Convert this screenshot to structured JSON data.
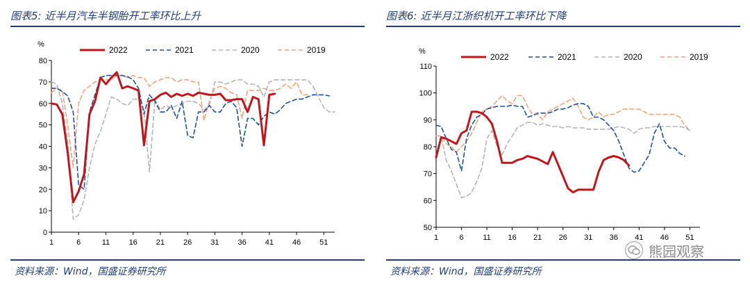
{
  "figures": [
    {
      "title": "图表5:  近半月汽车半钢胎开工率环比上升",
      "source": "资料来源：Wind，国盛证券研究所",
      "chart_data": {
        "type": "line",
        "unit_label": "%",
        "ylim": [
          0,
          80
        ],
        "yticks": [
          0,
          10,
          20,
          30,
          40,
          50,
          60,
          70,
          80
        ],
        "xlim": [
          1,
          53
        ],
        "xticks": [
          1,
          6,
          11,
          16,
          21,
          26,
          31,
          36,
          41,
          46,
          51
        ],
        "legend_position": "top",
        "series": [
          {
            "name": "2022",
            "color": "#c0161b",
            "dash": "solid",
            "width": 3,
            "x": [
              1,
              2,
              3,
              4,
              5,
              6,
              7,
              8,
              9,
              10,
              11,
              12,
              13,
              14,
              15,
              16,
              17,
              18,
              19,
              20,
              21,
              22,
              23,
              24,
              25,
              26,
              27,
              28,
              29,
              30,
              31,
              32,
              33,
              34,
              35,
              36,
              37,
              38,
              39,
              40,
              41,
              42
            ],
            "y": [
              60,
              59.5,
              55,
              37,
              14,
              19,
              27,
              55,
              61,
              72,
              69,
              72,
              74.5,
              67,
              68,
              67,
              66,
              40.5,
              61,
              62,
              64,
              65,
              63,
              64.5,
              63.5,
              64.5,
              63.5,
              65,
              64.5,
              64,
              64,
              64.5,
              61.5,
              61.5,
              62,
              62,
              56,
              63,
              62,
              40.5,
              64,
              64.5
            ]
          },
          {
            "name": "2021",
            "color": "#1f4e9c",
            "dash": "6,4",
            "width": 1.6,
            "x": [
              1,
              2,
              3,
              4,
              5,
              6,
              7,
              8,
              9,
              10,
              11,
              12,
              13,
              14,
              15,
              16,
              17,
              18,
              19,
              20,
              21,
              22,
              23,
              24,
              25,
              26,
              27,
              28,
              29,
              30,
              31,
              32,
              33,
              34,
              35,
              36,
              37,
              38,
              39,
              40,
              41,
              42,
              43,
              44,
              45,
              46,
              47,
              48,
              49,
              50,
              51,
              52
            ],
            "y": [
              67,
              67,
              65.5,
              63.5,
              56,
              22,
              20,
              56,
              64,
              72,
              73,
              73,
              73,
              73,
              72.5,
              71,
              67,
              55,
              64,
              61,
              56,
              56,
              59,
              53,
              61,
              45,
              44,
              56,
              56,
              59,
              56,
              56,
              60,
              61,
              58,
              40,
              53,
              53,
              50,
              54,
              56,
              55,
              57,
              60,
              61,
              62,
              62,
              63,
              64,
              64,
              64,
              63.5
            ]
          },
          {
            "name": "2020",
            "color": "#b5b5b5",
            "dash": "6,4",
            "width": 1.6,
            "x": [
              1,
              2,
              3,
              4,
              5,
              6,
              7,
              8,
              9,
              10,
              11,
              12,
              13,
              14,
              15,
              16,
              17,
              18,
              19,
              20,
              21,
              22,
              23,
              24,
              25,
              26,
              27,
              28,
              29,
              30,
              31,
              32,
              33,
              34,
              35,
              36,
              37,
              38,
              39,
              40,
              41,
              42,
              43,
              44,
              45,
              46,
              47,
              48,
              49,
              50,
              51,
              52,
              53
            ],
            "y": [
              70,
              69,
              60,
              42,
              6,
              8,
              15,
              30,
              41,
              47,
              55,
              63,
              62,
              60,
              59,
              62,
              62,
              57,
              28,
              62,
              57,
              59,
              58,
              59,
              60,
              61,
              61,
              60,
              57,
              59,
              70,
              70,
              69,
              70,
              71,
              71,
              69,
              69,
              68,
              63,
              70,
              71,
              71,
              71,
              71,
              71,
              71,
              71,
              68,
              63,
              58,
              56,
              56
            ]
          },
          {
            "name": "2019",
            "color": "#f4a27a",
            "dash": "6,4",
            "width": 1.6,
            "x": [
              1,
              2,
              3,
              4,
              5,
              6,
              7,
              8,
              9,
              10,
              11,
              12,
              13,
              14,
              15,
              16,
              17,
              18,
              19,
              20,
              21,
              22,
              23,
              24,
              25,
              26,
              27,
              28,
              29,
              30,
              31,
              32,
              33,
              34,
              35,
              36,
              37,
              38,
              39,
              40,
              41,
              42,
              43,
              44,
              45,
              46,
              47,
              48
            ],
            "y": [
              65,
              67,
              66,
              50,
              30,
              60,
              66,
              68,
              70,
              71,
              71,
              71,
              73,
              73,
              72,
              73,
              72,
              72,
              68,
              70,
              71,
              72,
              72,
              70,
              71,
              71,
              70,
              70,
              52,
              61,
              67,
              68,
              67,
              65,
              64,
              53,
              66,
              66,
              66,
              67,
              66,
              66,
              67,
              69,
              67,
              70,
              64,
              64
            ]
          }
        ]
      }
    },
    {
      "title": "图表6:  近半月江浙织机开工率环比下降",
      "source": "资料来源：Wind，国盛证券研究所",
      "chart_data": {
        "type": "line",
        "unit_label": "%",
        "ylim": [
          50,
          110
        ],
        "yticks": [
          50,
          60,
          70,
          80,
          90,
          100,
          110
        ],
        "xlim": [
          1,
          53
        ],
        "xticks": [
          1,
          6,
          11,
          16,
          21,
          26,
          31,
          36,
          41,
          46,
          51
        ],
        "legend_position": "top",
        "series": [
          {
            "name": "2022",
            "color": "#c0161b",
            "dash": "solid",
            "width": 3,
            "x": [
              1,
              2,
              3,
              4,
              5,
              6,
              7,
              8,
              9,
              10,
              11,
              12,
              13,
              14,
              15,
              16,
              17,
              18,
              19,
              20,
              21,
              22,
              23,
              24,
              25,
              26,
              27,
              28,
              29,
              30,
              31,
              32,
              33,
              34,
              35,
              36,
              37,
              38,
              39
            ],
            "y": [
              76,
              83.5,
              83,
              82,
              81,
              85,
              86,
              93,
              93,
              92.5,
              91,
              88.5,
              82,
              74,
              74,
              74,
              75,
              75.5,
              76.5,
              76,
              75.5,
              74.5,
              73.5,
              78,
              73.5,
              69,
              64.5,
              63,
              64,
              64,
              64,
              64,
              70.5,
              75,
              76,
              76.5,
              76,
              75,
              73
            ]
          },
          {
            "name": "2021",
            "color": "#1f4e9c",
            "dash": "6,4",
            "width": 1.6,
            "x": [
              1,
              2,
              3,
              4,
              5,
              6,
              7,
              8,
              9,
              10,
              11,
              12,
              13,
              14,
              15,
              16,
              17,
              18,
              19,
              20,
              21,
              22,
              23,
              24,
              25,
              26,
              27,
              28,
              29,
              30,
              31,
              32,
              33,
              34,
              35,
              36,
              37,
              38,
              39,
              40,
              41,
              42,
              43,
              44,
              45,
              46,
              47,
              48,
              49,
              50
            ],
            "y": [
              88,
              87.5,
              83,
              79,
              78,
              71,
              83,
              88,
              91,
              92,
              94,
              94.5,
              95,
              95,
              95,
              95.5,
              95,
              95,
              91,
              91.5,
              92.5,
              92.5,
              92.5,
              93,
              94,
              94,
              94.5,
              95.5,
              96,
              96,
              95,
              91,
              91,
              90,
              88,
              86,
              82,
              77,
              72,
              70.5,
              71,
              74,
              77,
              85,
              88.5,
              82,
              79.5,
              79.5,
              77.5,
              76.5
            ]
          },
          {
            "name": "2020",
            "color": "#b5b5b5",
            "dash": "6,4",
            "width": 1.6,
            "x": [
              1,
              2,
              3,
              4,
              5,
              6,
              7,
              8,
              9,
              10,
              11,
              12,
              13,
              14,
              15,
              16,
              17,
              18,
              19,
              20,
              21,
              22,
              23,
              24,
              25,
              26,
              27,
              28,
              29,
              30,
              31,
              32,
              33,
              34,
              35,
              36,
              37,
              38,
              39,
              40,
              41,
              42,
              43,
              44,
              45,
              46,
              47,
              48,
              49,
              50,
              51
            ],
            "y": [
              84,
              84,
              75,
              71,
              66,
              61,
              61.5,
              63,
              67,
              72,
              83,
              86,
              80,
              77,
              81,
              84,
              87,
              88,
              89,
              89,
              88,
              88.5,
              88,
              87.5,
              87.5,
              87,
              87.5,
              87,
              87,
              87,
              86.5,
              86.5,
              86.5,
              86.5,
              86.5,
              87,
              87.5,
              87,
              86.5,
              85,
              86.5,
              87,
              87,
              87.5,
              87.5,
              87.5,
              87.5,
              87.5,
              87.5,
              87,
              86
            ]
          },
          {
            "name": "2019",
            "color": "#f4a27a",
            "dash": "6,4",
            "width": 1.6,
            "x": [
              1,
              2,
              3,
              4,
              5,
              6,
              7,
              8,
              9,
              10,
              11,
              12,
              13,
              14,
              15,
              16,
              17,
              18,
              19,
              20,
              21,
              22,
              23,
              24,
              25,
              26,
              27,
              28,
              29,
              30,
              31,
              32,
              33,
              34,
              35,
              36,
              37,
              38,
              39,
              40,
              41,
              42,
              43,
              44,
              45,
              46,
              47,
              48,
              49,
              50,
              51
            ],
            "y": [
              84,
              84,
              81,
              80,
              78,
              80,
              82,
              85,
              89,
              93,
              94,
              95,
              97,
              99,
              97,
              96,
              99,
              99,
              95,
              92,
              92,
              90,
              93,
              94,
              95,
              96,
              97,
              98,
              95,
              91,
              90,
              91,
              93,
              91,
              92,
              92,
              93,
              94,
              94,
              94,
              94,
              93,
              92,
              92,
              92,
              92,
              92,
              92,
              91,
              88,
              86
            ]
          }
        ]
      }
    }
  ],
  "watermark": {
    "text": "熊园观察",
    "icon": "wechat-icon"
  }
}
